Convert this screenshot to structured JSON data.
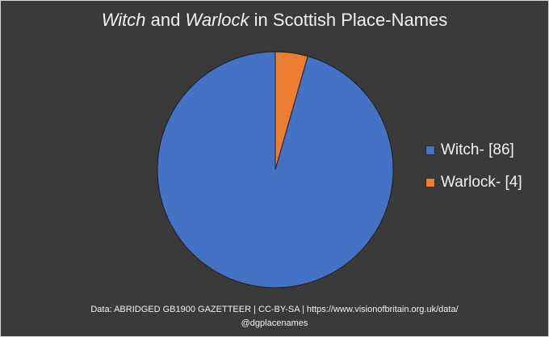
{
  "chart_data": {
    "type": "pie",
    "title_parts": [
      {
        "text": "Witch",
        "italic": true
      },
      {
        "text": " and ",
        "italic": false
      },
      {
        "text": "Warlock",
        "italic": true
      },
      {
        "text": " in Scottish Place-Names",
        "italic": false
      }
    ],
    "slices": [
      {
        "label": "Witch- [86]",
        "value": 86,
        "color": "#4472c4"
      },
      {
        "label": "Warlock- [4]",
        "value": 4,
        "color": "#ed7d31"
      }
    ],
    "legend_position": "right"
  },
  "footer": {
    "line1": "Data: ABRIDGED GB1900 GAZETTEER | CC-BY-SA | https://www.visionofbritain.org.uk/data/",
    "line2": "@dgplacenames"
  }
}
